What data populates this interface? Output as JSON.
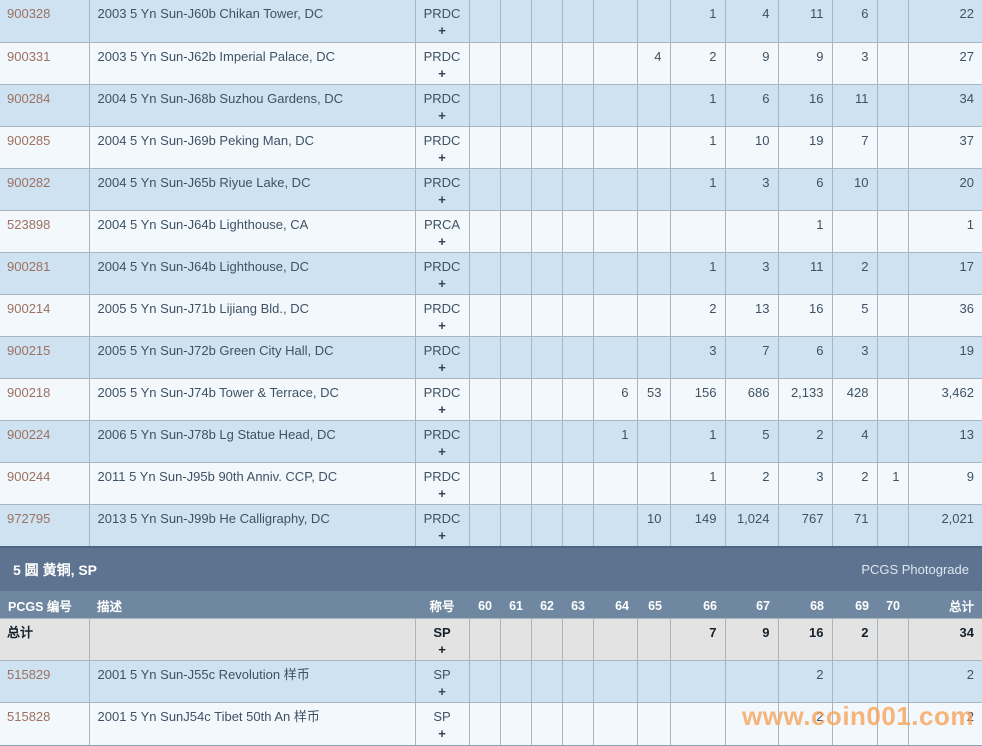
{
  "colors": {
    "row_blue": "#cee2f1",
    "row_white": "#f3f8fc",
    "section_bar": "#5d7390",
    "header_row": "#6f87a0",
    "total_bg": "#e3e3e3",
    "grid_line": "#a9b6c0",
    "link": "#9d7161",
    "text_dark": "#3e5265",
    "watermark_color": "#f7a255"
  },
  "grade_columns": [
    "60",
    "61",
    "62",
    "63",
    "64",
    "65",
    "66",
    "67",
    "68",
    "69",
    "70"
  ],
  "table_top": {
    "rows": [
      {
        "pcgs": "900328",
        "desc": "2003 5 Yn Sun-J60b Chikan Tower, DC",
        "desig": "PRDC",
        "plus": "+",
        "grades": {
          "66": "1",
          "67": "4",
          "68": "11",
          "69": "6"
        },
        "total": "22"
      },
      {
        "pcgs": "900331",
        "desc": "2003 5 Yn Sun-J62b Imperial Palace, DC",
        "desig": "PRDC",
        "plus": "+",
        "grades": {
          "65": "4",
          "66": "2",
          "67": "9",
          "68": "9",
          "69": "3"
        },
        "total": "27"
      },
      {
        "pcgs": "900284",
        "desc": "2004 5 Yn Sun-J68b Suzhou Gardens, DC",
        "desig": "PRDC",
        "plus": "+",
        "grades": {
          "66": "1",
          "67": "6",
          "68": "16",
          "69": "11"
        },
        "total": "34"
      },
      {
        "pcgs": "900285",
        "desc": "2004 5 Yn Sun-J69b Peking Man, DC",
        "desig": "PRDC",
        "plus": "+",
        "grades": {
          "66": "1",
          "67": "10",
          "68": "19",
          "69": "7"
        },
        "total": "37"
      },
      {
        "pcgs": "900282",
        "desc": "2004 5 Yn Sun-J65b Riyue Lake, DC",
        "desig": "PRDC",
        "plus": "+",
        "grades": {
          "66": "1",
          "67": "3",
          "68": "6",
          "69": "10"
        },
        "total": "20"
      },
      {
        "pcgs": "523898",
        "desc": "2004 5 Yn Sun-J64b Lighthouse, CA",
        "desig": "PRCA",
        "plus": "+",
        "grades": {
          "68": "1"
        },
        "total": "1"
      },
      {
        "pcgs": "900281",
        "desc": "2004 5 Yn Sun-J64b Lighthouse, DC",
        "desig": "PRDC",
        "plus": "+",
        "grades": {
          "66": "1",
          "67": "3",
          "68": "11",
          "69": "2"
        },
        "total": "17"
      },
      {
        "pcgs": "900214",
        "desc": "2005 5 Yn Sun-J71b Lijiang Bld., DC",
        "desig": "PRDC",
        "plus": "+",
        "grades": {
          "66": "2",
          "67": "13",
          "68": "16",
          "69": "5"
        },
        "total": "36"
      },
      {
        "pcgs": "900215",
        "desc": "2005 5 Yn Sun-J72b Green City Hall, DC",
        "desig": "PRDC",
        "plus": "+",
        "grades": {
          "66": "3",
          "67": "7",
          "68": "6",
          "69": "3"
        },
        "total": "19"
      },
      {
        "pcgs": "900218",
        "desc": "2005 5 Yn Sun-J74b Tower & Terrace, DC",
        "desig": "PRDC",
        "plus": "+",
        "grades": {
          "64": "6",
          "65": "53",
          "66": "156",
          "67": "686",
          "68": "2,133",
          "69": "428"
        },
        "total": "3,462"
      },
      {
        "pcgs": "900224",
        "desc": "2006 5 Yn Sun-J78b Lg Statue Head, DC",
        "desig": "PRDC",
        "plus": "+",
        "grades": {
          "64": "1",
          "66": "1",
          "67": "5",
          "68": "2",
          "69": "4"
        },
        "total": "13"
      },
      {
        "pcgs": "900244",
        "desc": "2011 5 Yn Sun-J95b 90th Anniv. CCP, DC",
        "desig": "PRDC",
        "plus": "+",
        "grades": {
          "66": "1",
          "67": "2",
          "68": "3",
          "69": "2",
          "70": "1"
        },
        "total": "9"
      },
      {
        "pcgs": "972795",
        "desc": "2013 5 Yn Sun-J99b He Calligraphy, DC",
        "desig": "PRDC",
        "plus": "+",
        "grades": {
          "65": "10",
          "66": "149",
          "67": "1,024",
          "68": "767",
          "69": "71"
        },
        "total": "2,021"
      }
    ]
  },
  "section2": {
    "title": "5 圆 黄铜, SP",
    "photograde_label": "PCGS Photograde",
    "headers": {
      "pcgs": "PCGS 编号",
      "desc": "描述",
      "desig": "称号",
      "total": "总计"
    },
    "total_row": {
      "label": "总计",
      "desc": "",
      "desig": "SP",
      "plus": "+",
      "grades": {
        "66": "7",
        "67": "9",
        "68": "16",
        "69": "2"
      },
      "total": "34"
    },
    "rows": [
      {
        "pcgs": "515829",
        "desc": "2001 5 Yn Sun-J55c Revolution 样币",
        "desig": "SP",
        "plus": "+",
        "grades": {
          "68": "2"
        },
        "total": "2"
      },
      {
        "pcgs": "515828",
        "desc": "2001 5 Yn SunJ54c Tibet 50th An 样币",
        "desig": "SP",
        "plus": "+",
        "grades": {
          "68": "2"
        },
        "total": "2"
      }
    ]
  },
  "watermark": "www.coin001.com"
}
